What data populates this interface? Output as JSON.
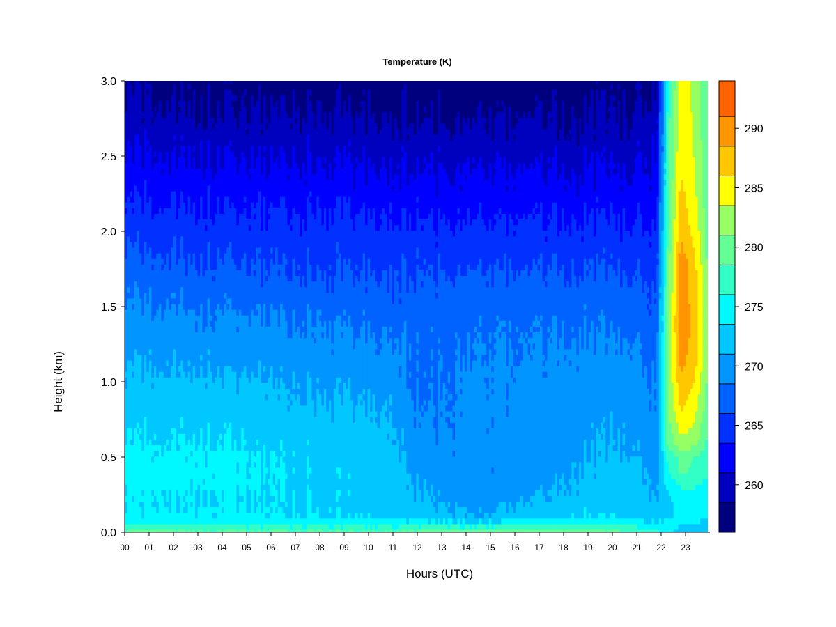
{
  "chart_data": {
    "type": "heatmap",
    "title": "Temperature (K)",
    "xlabel": "Hours (UTC)",
    "ylabel": "Height (km)",
    "x_ticks": [
      "00",
      "01",
      "02",
      "03",
      "04",
      "05",
      "06",
      "07",
      "08",
      "09",
      "10",
      "11",
      "12",
      "13",
      "14",
      "15",
      "16",
      "17",
      "18",
      "19",
      "20",
      "21",
      "22",
      "23"
    ],
    "xlim": [
      0,
      24
    ],
    "y_ticks": [
      "0.0",
      "0.5",
      "1.0",
      "1.5",
      "2.0",
      "2.5",
      "3.0"
    ],
    "ylim": [
      0.0,
      3.0
    ],
    "colorbar": {
      "ticks": [
        "260",
        "265",
        "270",
        "275",
        "280",
        "285",
        "290"
      ],
      "range": [
        256,
        294
      ],
      "levels": [
        256,
        258.5,
        261,
        263.5,
        266,
        268.5,
        271,
        273.5,
        276,
        278.5,
        281,
        283.5,
        286,
        288.5,
        291,
        294
      ],
      "colors": [
        "#00007F",
        "#0000BF",
        "#0000FF",
        "#0031FF",
        "#0063FF",
        "#0095FF",
        "#00C7FF",
        "#00F9FF",
        "#31FFC6",
        "#63FF95",
        "#95FF63",
        "#FFFF00",
        "#FFC700",
        "#FF9500",
        "#FF6300",
        "#FF3100",
        "#FF0000",
        "#BF0000",
        "#7F0000"
      ],
      "position": "right"
    },
    "profiles_hours": [
      0,
      4,
      8,
      11,
      12,
      14.5,
      16.5,
      18.5,
      20.5,
      21.8,
      22.3,
      22.8,
      23.4,
      23.9
    ],
    "profiles_heights_km": [
      0.0,
      0.05,
      0.1,
      0.2,
      0.3,
      0.4,
      0.5,
      0.6,
      0.8,
      1.0,
      1.2,
      1.4,
      1.6,
      1.8,
      2.0,
      2.2,
      2.4,
      2.6,
      2.8,
      3.0
    ],
    "profiles_temperature_k": [
      [
        279.0,
        276.5,
        274.0,
        273.5,
        274.0,
        274.2,
        274.0,
        273.5,
        272.5,
        271.5,
        270.5,
        269.5,
        268.0,
        266.5,
        265.0,
        263.5,
        262.0,
        260.5,
        259.0,
        258.0
      ],
      [
        278.5,
        276.0,
        274.0,
        273.5,
        274.0,
        274.2,
        274.0,
        273.5,
        272.5,
        271.5,
        270.0,
        269.0,
        267.5,
        266.0,
        264.5,
        263.0,
        261.5,
        260.0,
        258.5,
        257.5
      ],
      [
        278.5,
        275.5,
        273.5,
        273.0,
        273.0,
        273.0,
        272.8,
        272.5,
        271.5,
        270.5,
        269.5,
        268.5,
        267.0,
        265.5,
        264.5,
        263.0,
        261.5,
        260.0,
        258.5,
        257.0
      ],
      [
        278.5,
        275.5,
        273.0,
        272.5,
        272.5,
        272.5,
        272.0,
        271.5,
        271.0,
        270.0,
        269.0,
        267.5,
        266.5,
        265.5,
        264.0,
        262.5,
        261.0,
        259.5,
        258.0,
        257.0
      ],
      [
        279.0,
        275.5,
        272.5,
        271.5,
        271.0,
        270.5,
        269.5,
        269.0,
        268.5,
        268.0,
        268.0,
        267.5,
        266.5,
        265.5,
        264.0,
        262.5,
        261.0,
        259.5,
        258.0,
        257.0
      ],
      [
        279.5,
        275.0,
        271.0,
        270.0,
        269.5,
        269.0,
        269.0,
        269.0,
        269.0,
        269.0,
        268.5,
        268.0,
        267.0,
        265.5,
        264.0,
        262.5,
        261.0,
        259.5,
        258.0,
        257.0
      ],
      [
        280.0,
        276.0,
        272.0,
        271.0,
        270.0,
        269.5,
        269.5,
        269.5,
        269.5,
        269.0,
        268.5,
        268.0,
        267.0,
        265.5,
        264.0,
        262.5,
        261.0,
        259.5,
        258.0,
        257.0
      ],
      [
        279.5,
        276.0,
        273.5,
        272.0,
        271.5,
        271.0,
        270.5,
        270.5,
        270.0,
        269.5,
        269.0,
        268.0,
        267.0,
        265.5,
        264.0,
        262.5,
        261.0,
        259.5,
        258.0,
        257.0
      ],
      [
        278.5,
        275.5,
        273.5,
        272.5,
        272.5,
        272.0,
        271.5,
        271.0,
        270.5,
        270.0,
        269.0,
        268.0,
        267.0,
        265.5,
        264.0,
        262.5,
        261.0,
        259.5,
        258.5,
        257.5
      ],
      [
        277.0,
        274.5,
        272.5,
        271.5,
        271.0,
        270.5,
        270.0,
        269.5,
        269.0,
        268.5,
        268.0,
        267.0,
        266.0,
        265.0,
        264.0,
        262.5,
        261.5,
        260.5,
        259.5,
        258.5
      ],
      [
        274.0,
        274.0,
        273.0,
        273.0,
        274.0,
        276.0,
        277.0,
        279.5,
        281.0,
        281.5,
        281.5,
        281.0,
        280.5,
        280.0,
        279.5,
        279.0,
        278.5,
        278.0,
        277.5,
        277.0
      ],
      [
        273.0,
        273.5,
        274.0,
        274.5,
        276.0,
        279.0,
        279.0,
        283.0,
        286.0,
        288.0,
        290.0,
        291.0,
        290.0,
        290.0,
        288.0,
        287.0,
        286.0,
        285.5,
        285.0,
        284.5
      ],
      [
        273.0,
        273.5,
        274.0,
        275.0,
        276.0,
        278.0,
        278.5,
        282.0,
        284.0,
        286.0,
        287.0,
        287.5,
        287.0,
        286.5,
        285.0,
        284.0,
        283.5,
        283.0,
        283.0,
        283.0
      ],
      [
        272.5,
        273.0,
        273.5,
        274.0,
        275.0,
        276.5,
        277.0,
        278.0,
        279.5,
        280.5,
        281.0,
        281.0,
        281.0,
        280.5,
        280.0,
        279.5,
        279.5,
        279.0,
        279.0,
        279.0
      ]
    ]
  }
}
